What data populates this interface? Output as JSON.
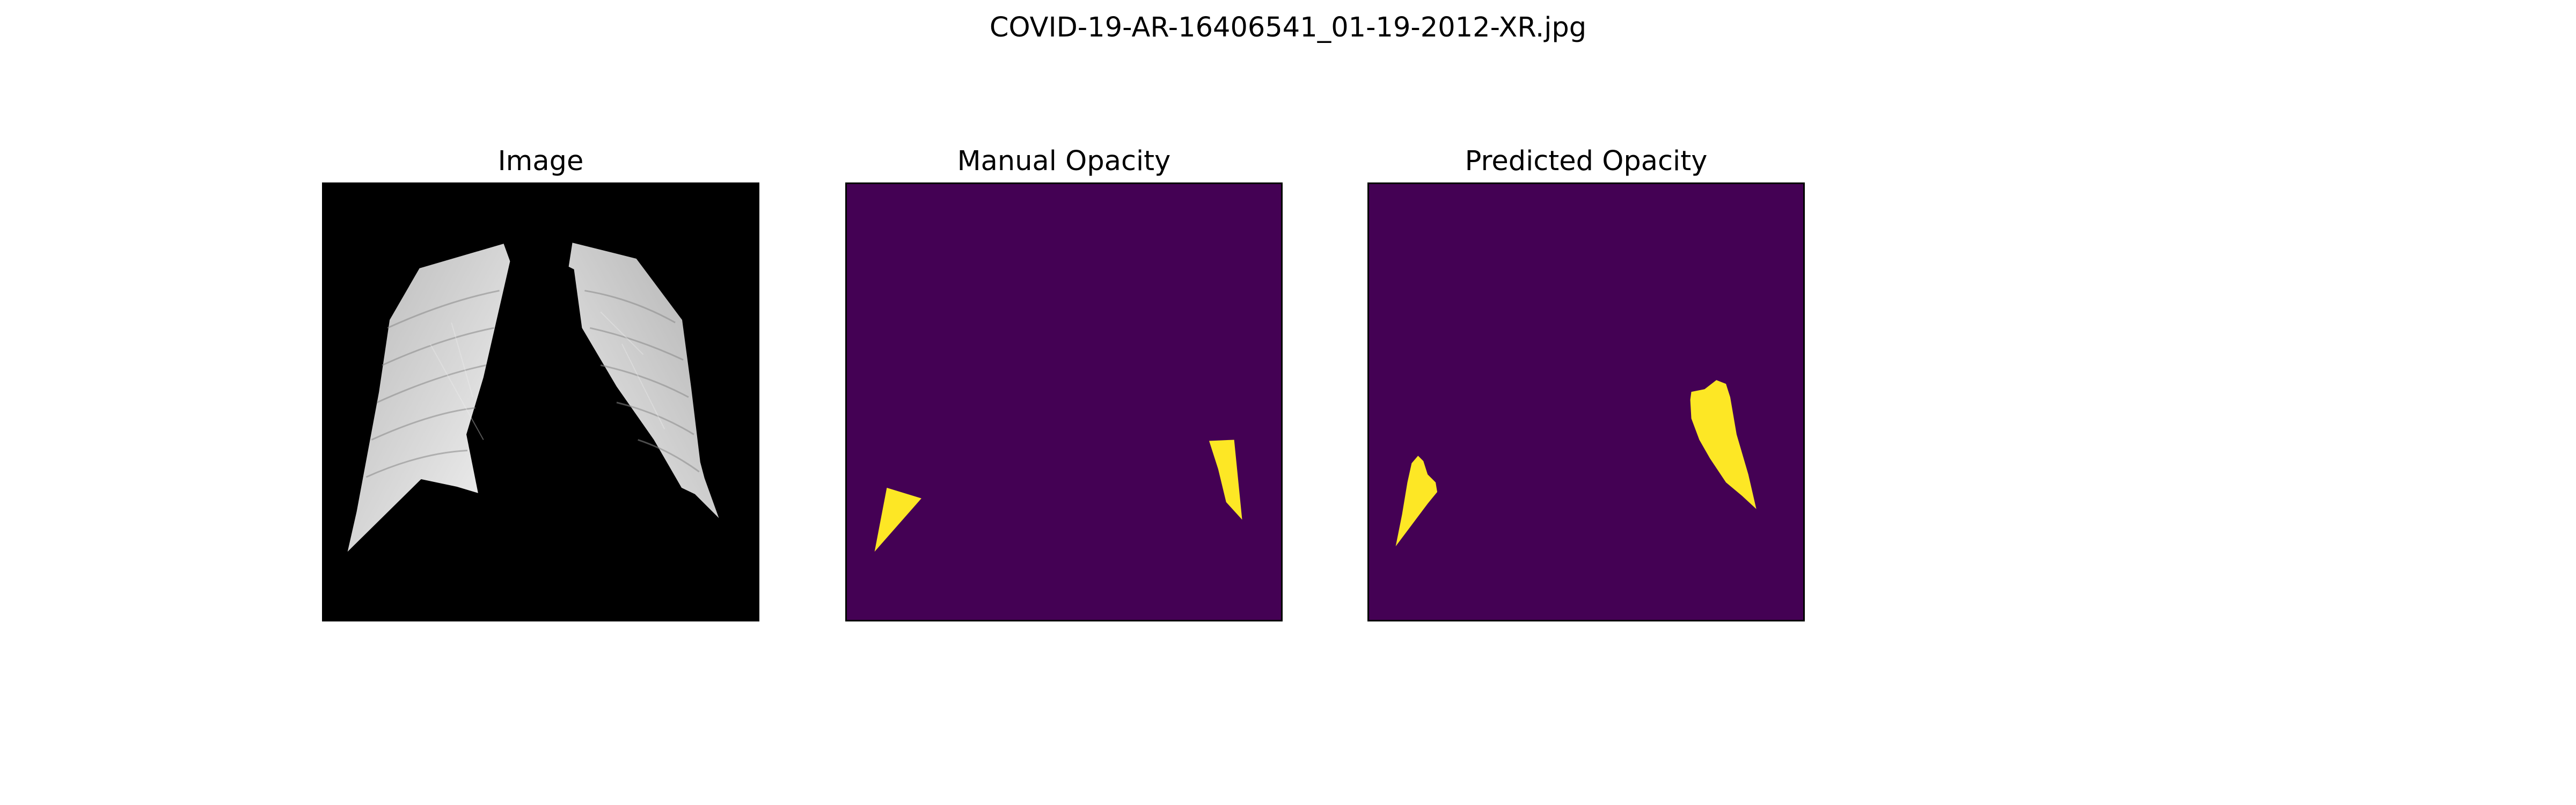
{
  "figure": {
    "title": "COVID-19-AR-16406541_01-19-2012-XR.jpg"
  },
  "panels": [
    {
      "title": "Image",
      "kind": "xray",
      "colors": {
        "background": "#000000",
        "lung": "#d6d6d6"
      }
    },
    {
      "title": "Manual Opacity",
      "kind": "mask",
      "colors": {
        "background": "#440154",
        "region": "#fde725"
      }
    },
    {
      "title": "Predicted Opacity",
      "kind": "mask",
      "colors": {
        "background": "#440154",
        "region": "#fde725"
      }
    }
  ]
}
